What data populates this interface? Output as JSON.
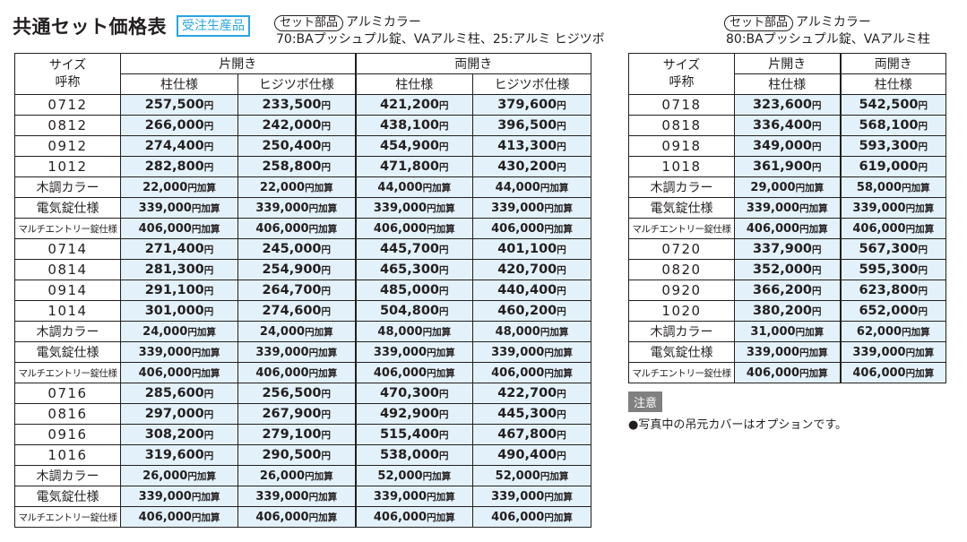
{
  "title": "共通セット価格表",
  "badge": "受注生産品",
  "sets": [
    {
      "pill": "セット部品",
      "color": "アルミカラー",
      "desc": "70:BAプッシュプル錠、VAアルミ柱、25:アルミ ヒジツボ"
    },
    {
      "pill": "セット部品",
      "color": "アルミカラー",
      "desc": "80:BAプッシュプル錠、VAアルミ柱"
    }
  ],
  "left_table": {
    "size_label_1": "サイズ",
    "size_label_2": "呼称",
    "group_kata": "片開き",
    "group_ryo": "両開き",
    "col_hashira": "柱仕様",
    "col_hijitsubo": "ヒジツボ仕様",
    "rows": [
      {
        "label": "0712",
        "v": [
          "257,500",
          "233,500",
          "421,200",
          "379,600"
        ],
        "u": "円"
      },
      {
        "label": "0812",
        "v": [
          "266,000",
          "242,000",
          "438,100",
          "396,500"
        ],
        "u": "円"
      },
      {
        "label": "0912",
        "v": [
          "274,400",
          "250,400",
          "454,900",
          "413,300"
        ],
        "u": "円"
      },
      {
        "label": "1012",
        "v": [
          "282,800",
          "258,800",
          "471,800",
          "430,200"
        ],
        "u": "円"
      },
      {
        "label": "木調カラー",
        "v": [
          "22,000",
          "22,000",
          "44,000",
          "44,000"
        ],
        "u": "円加算",
        "t": "md"
      },
      {
        "label": "電気錠仕様",
        "v": [
          "339,000",
          "339,000",
          "339,000",
          "339,000"
        ],
        "u": "円加算",
        "t": "md"
      },
      {
        "label": "マルチエントリー錠仕様",
        "v": [
          "406,000",
          "406,000",
          "406,000",
          "406,000"
        ],
        "u": "円加算",
        "t": "sm"
      },
      {
        "label": "0714",
        "v": [
          "271,400",
          "245,000",
          "445,700",
          "401,100"
        ],
        "u": "円"
      },
      {
        "label": "0814",
        "v": [
          "281,300",
          "254,900",
          "465,300",
          "420,700"
        ],
        "u": "円"
      },
      {
        "label": "0914",
        "v": [
          "291,100",
          "264,700",
          "485,000",
          "440,400"
        ],
        "u": "円"
      },
      {
        "label": "1014",
        "v": [
          "301,000",
          "274,600",
          "504,800",
          "460,200"
        ],
        "u": "円"
      },
      {
        "label": "木調カラー",
        "v": [
          "24,000",
          "24,000",
          "48,000",
          "48,000"
        ],
        "u": "円加算",
        "t": "md"
      },
      {
        "label": "電気錠仕様",
        "v": [
          "339,000",
          "339,000",
          "339,000",
          "339,000"
        ],
        "u": "円加算",
        "t": "md"
      },
      {
        "label": "マルチエントリー錠仕様",
        "v": [
          "406,000",
          "406,000",
          "406,000",
          "406,000"
        ],
        "u": "円加算",
        "t": "sm"
      },
      {
        "label": "0716",
        "v": [
          "285,600",
          "256,500",
          "470,300",
          "422,700"
        ],
        "u": "円"
      },
      {
        "label": "0816",
        "v": [
          "297,000",
          "267,900",
          "492,900",
          "445,300"
        ],
        "u": "円"
      },
      {
        "label": "0916",
        "v": [
          "308,200",
          "279,100",
          "515,400",
          "467,800"
        ],
        "u": "円"
      },
      {
        "label": "1016",
        "v": [
          "319,600",
          "290,500",
          "538,000",
          "490,400"
        ],
        "u": "円"
      },
      {
        "label": "木調カラー",
        "v": [
          "26,000",
          "26,000",
          "52,000",
          "52,000"
        ],
        "u": "円加算",
        "t": "md"
      },
      {
        "label": "電気錠仕様",
        "v": [
          "339,000",
          "339,000",
          "339,000",
          "339,000"
        ],
        "u": "円加算",
        "t": "md"
      },
      {
        "label": "マルチエントリー錠仕様",
        "v": [
          "406,000",
          "406,000",
          "406,000",
          "406,000"
        ],
        "u": "円加算",
        "t": "sm"
      }
    ]
  },
  "right_table": {
    "size_label_1": "サイズ",
    "size_label_2": "呼称",
    "group_kata": "片開き",
    "group_ryo": "両開き",
    "col_kata": "柱仕様",
    "col_ryo": "柱仕様",
    "rows": [
      {
        "label": "0718",
        "v": [
          "323,600",
          "542,500"
        ],
        "u": "円"
      },
      {
        "label": "0818",
        "v": [
          "336,400",
          "568,100"
        ],
        "u": "円"
      },
      {
        "label": "0918",
        "v": [
          "349,000",
          "593,300"
        ],
        "u": "円"
      },
      {
        "label": "1018",
        "v": [
          "361,900",
          "619,000"
        ],
        "u": "円"
      },
      {
        "label": "木調カラー",
        "v": [
          "29,000",
          "58,000"
        ],
        "u": "円加算",
        "t": "md"
      },
      {
        "label": "電気錠仕様",
        "v": [
          "339,000",
          "339,000"
        ],
        "u": "円加算",
        "t": "md"
      },
      {
        "label": "マルチエントリー錠仕様",
        "v": [
          "406,000",
          "406,000"
        ],
        "u": "円加算",
        "t": "sm"
      },
      {
        "label": "0720",
        "v": [
          "337,900",
          "567,300"
        ],
        "u": "円"
      },
      {
        "label": "0820",
        "v": [
          "352,000",
          "595,300"
        ],
        "u": "円"
      },
      {
        "label": "0920",
        "v": [
          "366,200",
          "623,800"
        ],
        "u": "円"
      },
      {
        "label": "1020",
        "v": [
          "380,200",
          "652,000"
        ],
        "u": "円"
      },
      {
        "label": "木調カラー",
        "v": [
          "31,000",
          "62,000"
        ],
        "u": "円加算",
        "t": "md"
      },
      {
        "label": "電気錠仕様",
        "v": [
          "339,000",
          "339,000"
        ],
        "u": "円加算",
        "t": "md"
      },
      {
        "label": "マルチエントリー錠仕様",
        "v": [
          "406,000",
          "406,000"
        ],
        "u": "円加算",
        "t": "sm"
      }
    ]
  },
  "note_label": "注意",
  "note_text": "●写真中の吊元カバーはオプションです。"
}
